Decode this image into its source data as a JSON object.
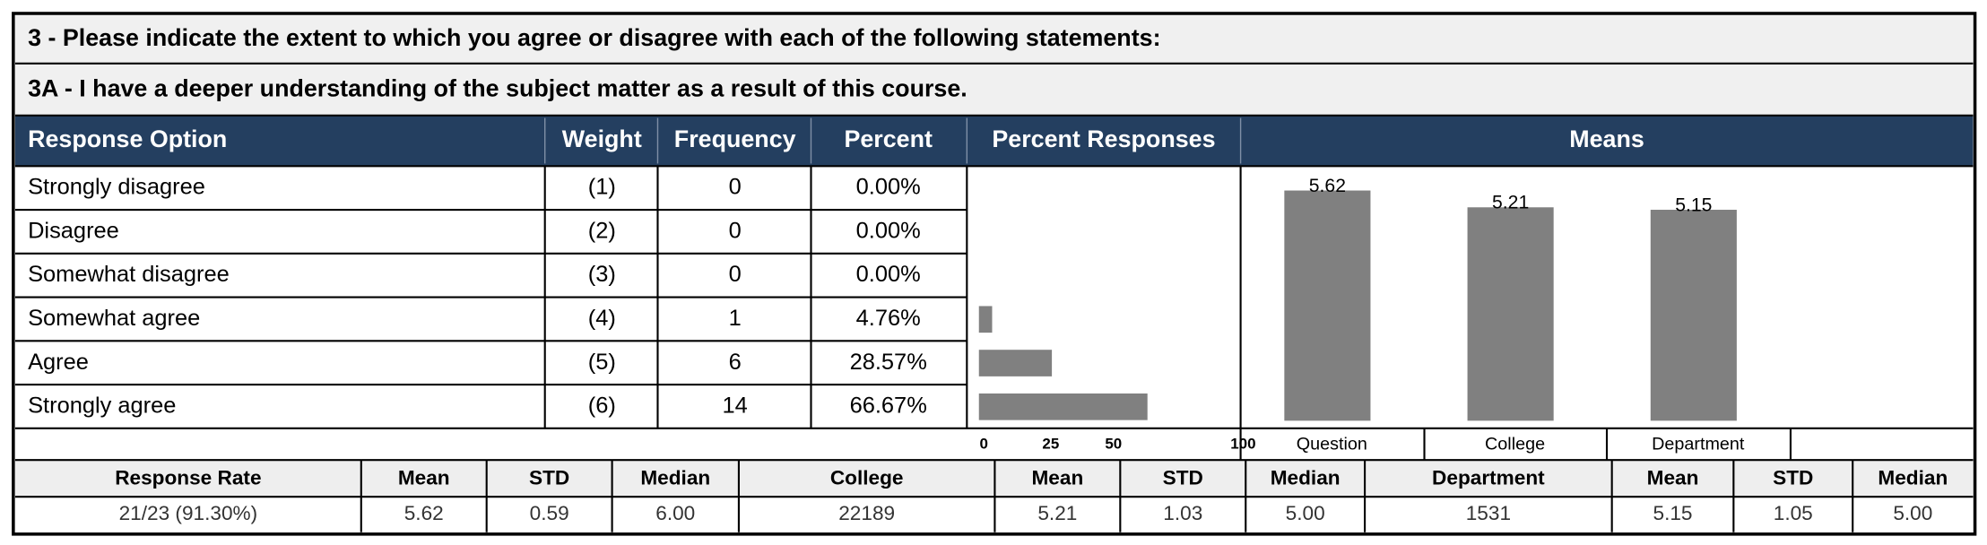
{
  "question": {
    "title": "3 - Please indicate the extent to which you agree or disagree with each of the following statements:",
    "subtitle": "3A - I have a deeper understanding of the subject matter as a result of this course."
  },
  "table": {
    "headers": [
      "Response Option",
      "Weight",
      "Frequency",
      "Percent",
      "Percent Responses",
      "Means"
    ],
    "rows": [
      [
        "Strongly disagree",
        "(1)",
        0
      ],
      [
        "Disagree",
        "(2)",
        0
      ],
      [
        "Somewhat disagree",
        "(3)",
        0
      ],
      [
        "Somewhat agree",
        "(4)",
        1
      ],
      [
        "Agree",
        "(5)",
        6
      ],
      [
        "Strongly agree",
        "(6)",
        14
      ]
    ]
  },
  "percent_chart": {
    "type": "bar",
    "values": [
      0,
      0,
      0,
      4.76,
      28.57,
      66.67
    ],
    "value_labels": [
      "0.00%",
      "0.00%",
      "0.00%",
      "4.76%",
      "28.57%",
      "66.67%"
    ],
    "xlim": [
      0,
      100
    ],
    "xticks": [
      0,
      25,
      50,
      100
    ],
    "color": "#808080"
  },
  "means_chart": {
    "type": "bar",
    "categories": [
      "Question",
      "College",
      "Department"
    ],
    "values": [
      5.62,
      5.21,
      5.15
    ],
    "ylim": [
      0,
      6
    ],
    "color": "#808080"
  },
  "stats": {
    "headers": [
      "Response Rate",
      "Mean",
      "STD",
      "Median",
      "College",
      "Mean",
      "STD",
      "Median",
      "Department",
      "Mean",
      "STD",
      "Median"
    ],
    "values": [
      "21/23 (91.30%)",
      "5.62",
      "0.59",
      "6.00",
      "22189",
      "5.21",
      "1.03",
      "5.00",
      "1531",
      "5.15",
      "1.05",
      "5.00"
    ]
  }
}
